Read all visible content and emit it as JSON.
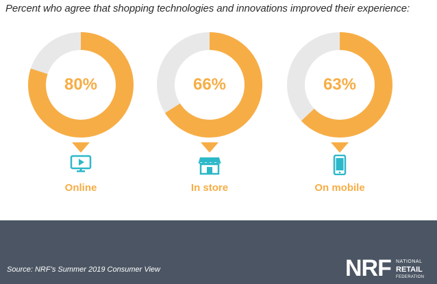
{
  "chart_data": {
    "type": "pie",
    "title": "Percent who agree that shopping technologies and innovations improved their experience:",
    "categories": [
      "Online",
      "In store",
      "On mobile"
    ],
    "values": [
      80,
      66,
      63
    ],
    "value_labels": [
      "80%",
      "66%",
      "63%"
    ],
    "unit": "%",
    "max": 100
  },
  "icons": [
    "monitor-play-icon",
    "storefront-icon",
    "smartphone-icon"
  ],
  "colors": {
    "accent": "#f7ad45",
    "remainder": "#e8e8e8",
    "footer": "#4b5563"
  },
  "footer": {
    "source": "Source: NRF’s Summer 2019 Consumer View",
    "logo_mark": "NRF",
    "logo_line1": "NATIONAL",
    "logo_line2": "RETAIL",
    "logo_line3": "FEDERATION"
  }
}
